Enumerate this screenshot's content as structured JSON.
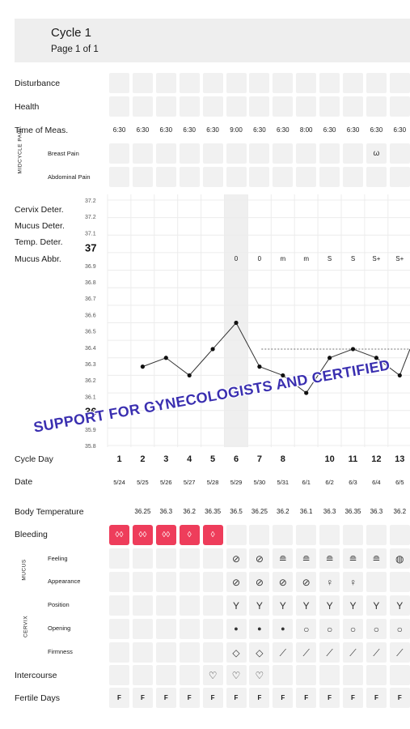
{
  "header": {
    "title": "Cycle 1",
    "subtitle": "Page 1 of 1"
  },
  "labels": {
    "disturbance": "Disturbance",
    "health": "Health",
    "time_of_meas": "Time of Meas.",
    "midcycle_pain": "MIDCYCLE PAIN",
    "breast_pain": "Breast Pain",
    "abdominal_pain": "Abdominal Pain",
    "cervix_deter": "Cervix Deter.",
    "mucus_deter": "Mucus Deter.",
    "temp_deter": "Temp. Deter.",
    "mucus_abbr": "Mucus Abbr.",
    "cycle_day": "Cycle Day",
    "date": "Date",
    "body_temperature": "Body Temperature",
    "bleeding": "Bleeding",
    "mucus_group": "MUCUS",
    "feeling": "Feeling",
    "appearance": "Appearance",
    "cervix_group": "CERVIX",
    "position": "Position",
    "opening": "Opening",
    "firmness": "Firmness",
    "intercourse": "Intercourse",
    "fertile_days": "Fertile Days"
  },
  "times": [
    "6:30",
    "6:30",
    "6:30",
    "6:30",
    "6:30",
    "9:00",
    "6:30",
    "6:30",
    "8:00",
    "6:30",
    "6:30",
    "6:30",
    "6:30"
  ],
  "y_axis_labels": [
    "37.2",
    "37.2",
    "37.1",
    "37",
    "36.9",
    "36.8",
    "36.7",
    "36.6",
    "36.5",
    "36.4",
    "36.3",
    "36.2",
    "36.1",
    "36",
    "35.9",
    "35.8"
  ],
  "mucus_abbr": [
    "",
    "",
    "",
    "",
    "",
    "0",
    "0",
    "m",
    "m",
    "S",
    "S",
    "S+",
    "S+"
  ],
  "cycle_days": [
    "1",
    "2",
    "3",
    "4",
    "5",
    "6",
    "7",
    "8",
    "",
    "10",
    "11",
    "12",
    "13"
  ],
  "dates": [
    "5/24",
    "5/25",
    "5/26",
    "5/27",
    "5/28",
    "5/29",
    "5/30",
    "5/31",
    "6/1",
    "6/2",
    "6/3",
    "6/4",
    "6/5"
  ],
  "body_temps": [
    "",
    "36.25",
    "36.3",
    "36.2",
    "36.35",
    "36.5",
    "36.25",
    "36.2",
    "36.1",
    "36.3",
    "36.35",
    "36.3",
    "36.2"
  ],
  "fertile": [
    "F",
    "F",
    "F",
    "F",
    "F",
    "F",
    "F",
    "F",
    "F",
    "F",
    "F",
    "F",
    "F"
  ],
  "watermark": "SUPPORT FOR GYNECOLOGISTS AND CERTIFIED",
  "chart_data": {
    "type": "line",
    "x": [
      "5/24",
      "5/25",
      "5/26",
      "5/27",
      "5/28",
      "5/29",
      "5/30",
      "5/31",
      "6/1",
      "6/2",
      "6/3",
      "6/4",
      "6/5"
    ],
    "series": [
      {
        "values": [
          null,
          36.25,
          36.3,
          36.2,
          36.35,
          36.5,
          36.25,
          36.2,
          36.1,
          36.3,
          36.35,
          36.3,
          36.2
        ]
      }
    ],
    "cover_line": 36.35,
    "ylim": [
      35.8,
      37.2
    ]
  }
}
